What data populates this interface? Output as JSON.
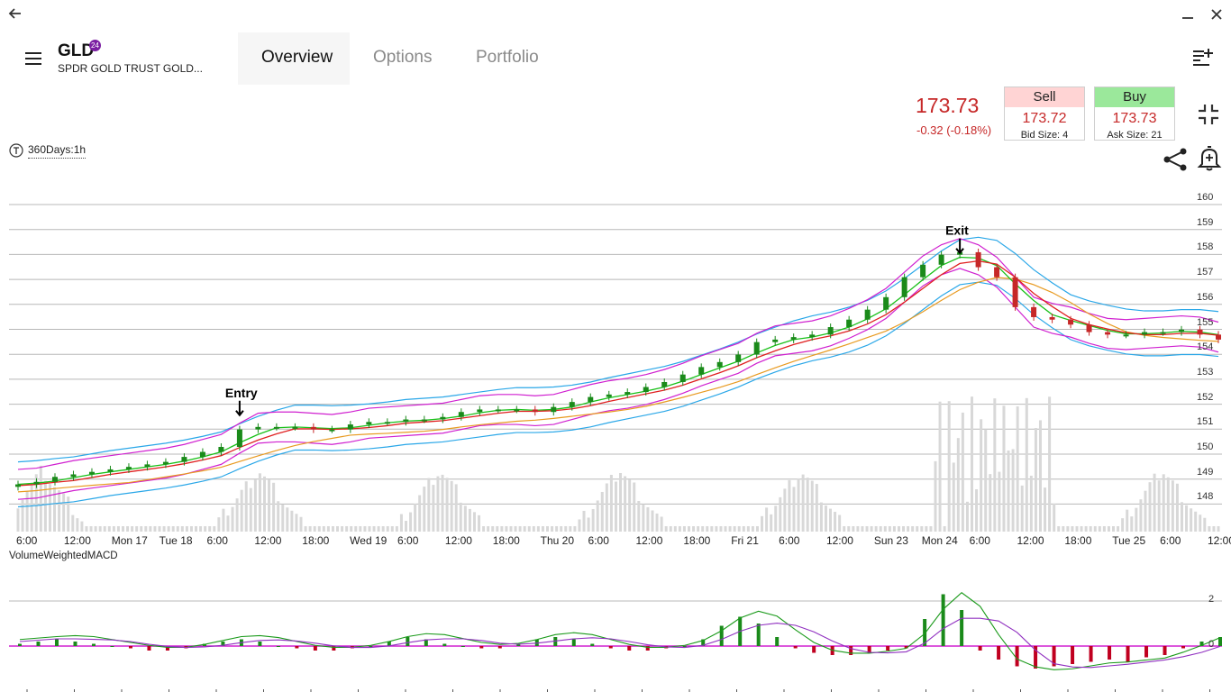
{
  "window": {
    "back_icon": "arrow-left-icon",
    "minimize_icon": "minimize-icon",
    "close_icon": "close-icon"
  },
  "header": {
    "menu_icon": "hamburger-menu-icon",
    "symbol": "GLD",
    "badge": "24",
    "name": "SPDR GOLD TRUST GOLD...",
    "tabs": [
      {
        "label": "Overview",
        "active": true
      },
      {
        "label": "Options",
        "active": false
      },
      {
        "label": "Portfolio",
        "active": false
      }
    ],
    "watchlist_icon": "playlist-add-icon"
  },
  "quote": {
    "last": "173.73",
    "change": "-0.32 (-0.18%)",
    "sell": {
      "label": "Sell",
      "price": "173.72",
      "size": "Bid Size: 4"
    },
    "buy": {
      "label": "Buy",
      "price": "173.73",
      "size": "Ask Size: 21"
    },
    "colors": {
      "down": "#c62828",
      "sell_header": "#ffd4d4",
      "buy_header": "#9be89b"
    }
  },
  "toolbar": {
    "timeframe": "360Days:1h",
    "collapse_icon": "collapse-icon",
    "share_icon": "share-icon",
    "alert_icon": "alert-bell-icon"
  },
  "chart_data": [
    {
      "type": "line",
      "title": "",
      "x_tick_labels": [
        "6:00",
        "12:00",
        "Mon 17",
        "Tue 18",
        "6:00",
        "12:00",
        "18:00",
        "Wed 19",
        "6:00",
        "12:00",
        "18:00",
        "Thu 20",
        "6:00",
        "12:00",
        "18:00",
        "Fri 21",
        "6:00",
        "12:00",
        "Sun 23",
        "Mon 24",
        "6:00",
        "12:00",
        "18:00",
        "Tue 25",
        "6:00",
        "12:00"
      ],
      "y_tick_labels": [
        "160",
        "159",
        "158",
        "157",
        "156",
        "155",
        "154",
        "153",
        "152",
        "151",
        "150",
        "149",
        "148"
      ],
      "ylim": [
        147.5,
        160.3
      ],
      "grid": true,
      "annotations": [
        {
          "text": "Entry",
          "x_index": 12,
          "y": 151.2
        },
        {
          "text": "Exit",
          "x_index": 51,
          "y": 157.7
        }
      ],
      "series": [
        {
          "values": [
            148.5,
            148.6,
            148.8,
            148.9,
            149.0,
            149.1,
            149.2,
            149.3,
            149.4,
            149.6,
            149.8,
            150.0,
            150.7,
            150.8,
            150.8,
            150.8,
            150.7,
            150.7,
            150.9,
            151.0,
            151.0,
            151.1,
            151.1,
            151.2,
            151.4,
            151.5,
            151.5,
            151.5,
            151.4,
            151.6,
            151.8,
            152.0,
            152.1,
            152.2,
            152.4,
            152.6,
            152.9,
            153.2,
            153.4,
            153.7,
            154.2,
            154.3,
            154.4,
            154.5,
            154.8,
            155.1,
            155.5,
            156.0,
            156.8,
            157.3,
            157.7,
            157.8,
            157.2,
            156.8,
            155.6,
            155.2,
            155.1,
            154.9,
            154.6,
            154.5,
            154.5,
            154.6,
            154.6,
            154.7,
            154.5,
            154.3
          ]
        }
      ],
      "colors": {
        "up_candle": "#1a8a1a",
        "down_candle": "#c62828",
        "bollinger": "#d020d0",
        "bollinger2": "#2aa7e8",
        "ma_fast": "#18c018",
        "ma_mid": "#e02020",
        "ma_slow": "#e89a20",
        "volume": "#d8d8d8"
      }
    },
    {
      "type": "bar",
      "title": "",
      "indicator_label": "VolumeWeightedMACD",
      "y_tick_labels": [
        "2",
        "0"
      ],
      "ylim": [
        -1.6,
        3.2
      ],
      "values": [
        0.1,
        0.2,
        0.3,
        0.2,
        0.1,
        0.0,
        -0.1,
        -0.2,
        -0.2,
        -0.1,
        0.1,
        0.2,
        0.3,
        0.2,
        0.0,
        -0.1,
        -0.2,
        -0.2,
        -0.1,
        0.0,
        0.2,
        0.4,
        0.3,
        0.1,
        0.0,
        -0.1,
        -0.1,
        0.1,
        0.3,
        0.4,
        0.3,
        0.1,
        -0.1,
        -0.2,
        -0.2,
        -0.1,
        0.0,
        0.3,
        0.9,
        1.3,
        1.0,
        0.4,
        -0.1,
        -0.3,
        -0.4,
        -0.4,
        -0.3,
        -0.2,
        -0.1,
        1.2,
        2.3,
        1.6,
        -0.2,
        -0.6,
        -0.9,
        -1.0,
        -0.9,
        -0.8,
        -0.7,
        -0.6,
        -0.7,
        -0.5,
        -0.4,
        -0.1,
        0.2,
        0.4
      ]
    }
  ]
}
